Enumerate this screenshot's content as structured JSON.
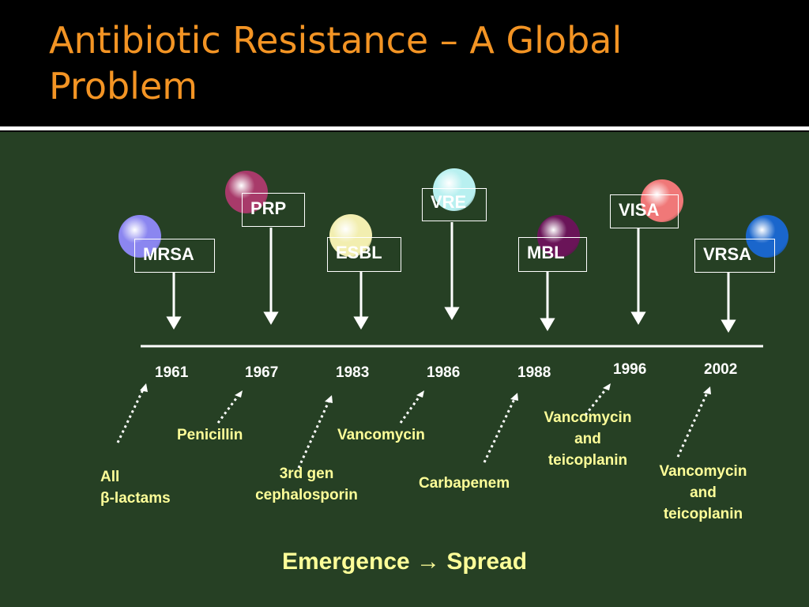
{
  "title": "Antibiotic Resistance – A Global Problem",
  "organisms": [
    {
      "label": "MRSA",
      "color": "#8b86f0"
    },
    {
      "label": "PRP",
      "color": "#a83a6a"
    },
    {
      "label": "ESBL",
      "color": "#f2eeb0"
    },
    {
      "label": "VRE",
      "color": "#b8f0f0"
    },
    {
      "label": "MBL",
      "color": "#6a1458"
    },
    {
      "label": "VISA",
      "color": "#f07878"
    },
    {
      "label": "VRSA",
      "color": "#1a66cc"
    }
  ],
  "years": [
    "1961",
    "1967",
    "1983",
    "1986",
    "1988",
    "1996",
    "2002"
  ],
  "drugs": {
    "all": "All",
    "beta": "β-lactams",
    "penicillin": "Penicillin",
    "cef1": "3rd gen",
    "cef2": "cephalosporin",
    "vancomycin": "Vancomycin",
    "carbapenem": "Carbapenem",
    "vt1": {
      "a": "Vancomycin",
      "b": "and",
      "c": "teicoplanin"
    },
    "vt2": {
      "a": "Vancomycin",
      "b": "and",
      "c": "teicoplanin"
    }
  },
  "footer": "Emergence → Spread"
}
